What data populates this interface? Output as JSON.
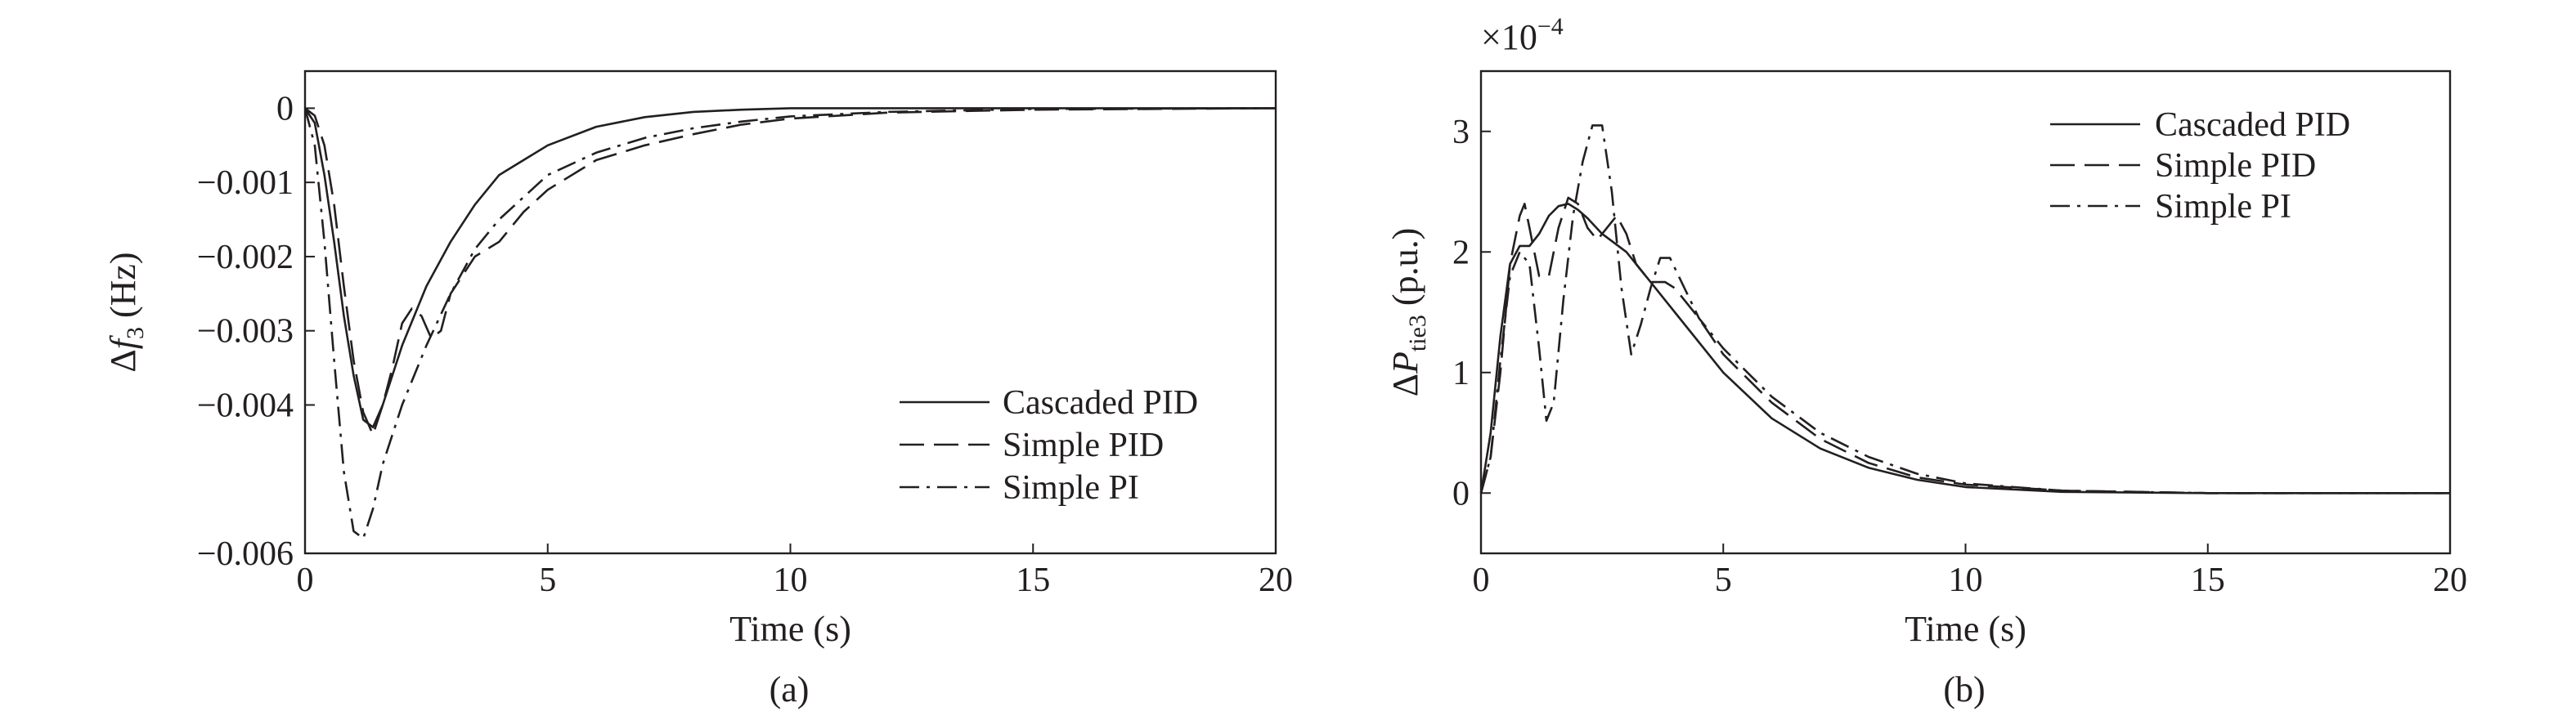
{
  "colors": {
    "ink": "#231f20",
    "background": "#ffffff"
  },
  "chart_data": [
    {
      "type": "line",
      "panel_label": "(a)",
      "xlabel": "Time (s)",
      "ylabel": {
        "prefix": "Δ",
        "var": "f",
        "sub": "3",
        "suffix": " (Hz)"
      },
      "xlim": [
        0,
        20
      ],
      "ylim": [
        -0.006,
        0.0005
      ],
      "xticks": [
        0,
        5,
        10,
        15,
        20
      ],
      "xtick_labels": [
        "0",
        "5",
        "10",
        "15",
        "20"
      ],
      "yticks": [
        0,
        -0.001,
        -0.002,
        -0.003,
        -0.004,
        -0.006
      ],
      "ytick_labels": [
        "0",
        "−0.001",
        "−0.002",
        "−0.003",
        "−0.004",
        "−0.006"
      ],
      "grid": false,
      "legend_position": "lower-right",
      "series": [
        {
          "name": "Cascaded PID",
          "style": "solid",
          "x": [
            0,
            0.2,
            0.4,
            0.6,
            0.8,
            1.0,
            1.2,
            1.4,
            1.6,
            2.0,
            2.5,
            3.0,
            3.5,
            4.0,
            5.0,
            6.0,
            7.0,
            8.0,
            9.0,
            10.0,
            12.0,
            15.0,
            20.0
          ],
          "y": [
            0,
            -0.0002,
            -0.0009,
            -0.0018,
            -0.0028,
            -0.0036,
            -0.0042,
            -0.0043,
            -0.004,
            -0.0032,
            -0.0024,
            -0.0018,
            -0.0013,
            -0.0009,
            -0.0005,
            -0.00025,
            -0.00012,
            -5e-05,
            -2e-05,
            0,
            0,
            0,
            0
          ]
        },
        {
          "name": "Simple PID",
          "style": "dashed",
          "x": [
            0,
            0.2,
            0.4,
            0.6,
            0.8,
            1.0,
            1.2,
            1.4,
            1.6,
            1.8,
            2.0,
            2.2,
            2.4,
            2.6,
            2.8,
            3.0,
            3.5,
            4.0,
            4.5,
            5.0,
            6.0,
            7.0,
            8.0,
            9.0,
            10.0,
            12.0,
            15.0,
            20.0
          ],
          "y": [
            0,
            -0.0001,
            -0.0005,
            -0.0013,
            -0.0024,
            -0.0034,
            -0.0041,
            -0.0044,
            -0.004,
            -0.0035,
            -0.0029,
            -0.0027,
            -0.0028,
            -0.0031,
            -0.003,
            -0.0025,
            -0.002,
            -0.0018,
            -0.0014,
            -0.0011,
            -0.0007,
            -0.0005,
            -0.00035,
            -0.00022,
            -0.00014,
            -6e-05,
            -2e-05,
            0
          ]
        },
        {
          "name": "Simple PI",
          "style": "dashdot",
          "x": [
            0,
            0.2,
            0.4,
            0.6,
            0.8,
            1.0,
            1.2,
            1.4,
            1.6,
            2.0,
            2.5,
            3.0,
            3.5,
            4.0,
            5.0,
            6.0,
            7.0,
            8.0,
            9.0,
            10.0,
            12.0,
            15.0,
            20.0
          ],
          "y": [
            0,
            -0.0005,
            -0.0018,
            -0.0034,
            -0.0049,
            -0.0057,
            -0.0058,
            -0.0054,
            -0.0048,
            -0.004,
            -0.0032,
            -0.0025,
            -0.0019,
            -0.0015,
            -0.0009,
            -0.0006,
            -0.0004,
            -0.00027,
            -0.00018,
            -0.00011,
            -5e-05,
            -1e-05,
            0
          ]
        }
      ]
    },
    {
      "type": "line",
      "panel_label": "(b)",
      "xlabel": "Time (s)",
      "ylabel": {
        "prefix": "Δ",
        "var": "P",
        "sub": "tie3",
        "suffix": " (p.u.)"
      },
      "scale_label": {
        "base": "×10",
        "exp": "−4"
      },
      "xlim": [
        0,
        20
      ],
      "ylim": [
        -0.5,
        3.5
      ],
      "xticks": [
        0,
        5,
        10,
        15,
        20
      ],
      "xtick_labels": [
        "0",
        "5",
        "10",
        "15",
        "20"
      ],
      "yticks": [
        0,
        1,
        2,
        3
      ],
      "ytick_labels": [
        "0",
        "1",
        "2",
        "3"
      ],
      "grid": false,
      "legend_position": "upper-right",
      "series": [
        {
          "name": "Cascaded PID",
          "style": "solid",
          "x": [
            0,
            0.2,
            0.4,
            0.6,
            0.8,
            1.0,
            1.2,
            1.4,
            1.6,
            1.8,
            2.0,
            2.2,
            2.5,
            3.0,
            3.5,
            4.0,
            5.0,
            6.0,
            7.0,
            8.0,
            9.0,
            10.0,
            12.0,
            15.0,
            20.0
          ],
          "y": [
            0,
            0.5,
            1.3,
            1.9,
            2.05,
            2.05,
            2.15,
            2.3,
            2.38,
            2.4,
            2.35,
            2.28,
            2.15,
            2.0,
            1.75,
            1.5,
            1.0,
            0.62,
            0.37,
            0.21,
            0.11,
            0.05,
            0.01,
            0,
            0
          ]
        },
        {
          "name": "Simple PID",
          "style": "dashed",
          "x": [
            0,
            0.2,
            0.4,
            0.6,
            0.8,
            0.9,
            1.0,
            1.2,
            1.4,
            1.6,
            1.8,
            2.0,
            2.2,
            2.4,
            2.6,
            2.8,
            3.0,
            3.2,
            3.5,
            3.8,
            4.0,
            4.5,
            5.0,
            6.0,
            7.0,
            8.0,
            9.0,
            10.0,
            12.0,
            15.0,
            20.0
          ],
          "y": [
            0,
            0.3,
            1.0,
            1.9,
            2.3,
            2.4,
            2.2,
            1.8,
            1.8,
            2.2,
            2.45,
            2.4,
            2.2,
            2.1,
            2.2,
            2.3,
            2.15,
            1.9,
            1.75,
            1.75,
            1.7,
            1.45,
            1.15,
            0.75,
            0.45,
            0.25,
            0.13,
            0.07,
            0.02,
            0,
            0
          ]
        },
        {
          "name": "Simple PI",
          "style": "dashdot",
          "x": [
            0,
            0.2,
            0.4,
            0.6,
            0.8,
            1.0,
            1.2,
            1.35,
            1.5,
            1.7,
            1.9,
            2.1,
            2.3,
            2.5,
            2.7,
            2.9,
            3.1,
            3.3,
            3.5,
            3.7,
            3.9,
            4.2,
            4.5,
            5.0,
            6.0,
            7.0,
            8.0,
            9.0,
            10.0,
            12.0,
            15.0,
            20.0
          ],
          "y": [
            0,
            0.3,
            1.1,
            1.8,
            2.0,
            1.9,
            1.2,
            0.6,
            0.75,
            1.6,
            2.3,
            2.75,
            3.05,
            3.05,
            2.5,
            1.7,
            1.15,
            1.4,
            1.7,
            1.95,
            1.95,
            1.7,
            1.45,
            1.2,
            0.8,
            0.5,
            0.3,
            0.16,
            0.08,
            0.02,
            0,
            0
          ]
        }
      ]
    }
  ]
}
